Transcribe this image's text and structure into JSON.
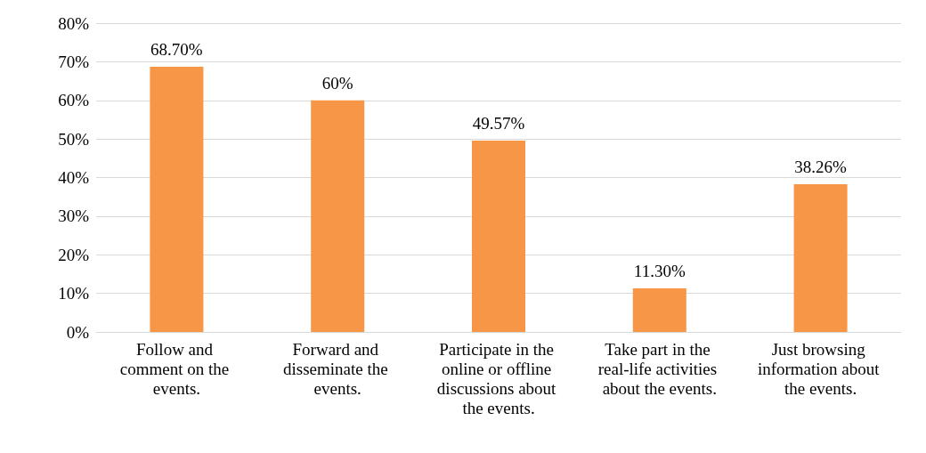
{
  "chart_data": {
    "type": "bar",
    "categories": [
      "Follow and comment on the events.",
      "Forward and disseminate the events.",
      "Participate in the online or offline discussions about the events.",
      "Take part in the real-life activities about the events.",
      "Just browsing information about the events."
    ],
    "values": [
      68.7,
      60,
      49.57,
      11.3,
      38.26
    ],
    "value_labels": [
      "68.70%",
      "60%",
      "49.57%",
      "11.30%",
      "38.26%"
    ],
    "color": "#f79646",
    "ylim": [
      0,
      80
    ],
    "yticks": [
      {
        "value": 0,
        "label": "0%"
      },
      {
        "value": 10,
        "label": "10%"
      },
      {
        "value": 20,
        "label": "20%"
      },
      {
        "value": 30,
        "label": "30%"
      },
      {
        "value": 40,
        "label": "40%"
      },
      {
        "value": 50,
        "label": "50%"
      },
      {
        "value": 60,
        "label": "60%"
      },
      {
        "value": 70,
        "label": "70%"
      },
      {
        "value": 80,
        "label": "80%"
      }
    ],
    "grid": "y"
  }
}
